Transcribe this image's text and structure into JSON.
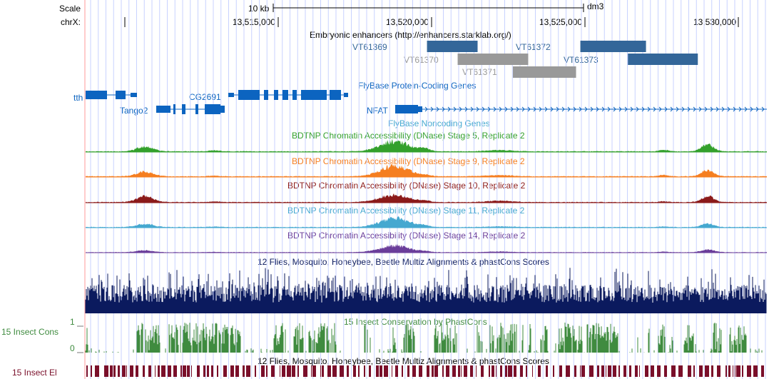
{
  "assembly": "dm3",
  "ruler": {
    "scale_label": "Scale",
    "chrom_label": "chrX:",
    "scale_bar_text": "10 kb",
    "ticks": [
      13515000,
      13520000,
      13525000,
      13530000
    ],
    "tick_labels": [
      "13,515,000",
      "13,520,000",
      "13,525,000",
      "13,530,000"
    ]
  },
  "colors": {
    "enhancer_dark": "#336699",
    "enhancer_grey": "#999999",
    "gene_blue": "#0c64c0",
    "dnase_stage5": "#33a02c",
    "dnase_stage9": "#f57e20",
    "dnase_stage10": "#8b1a1a",
    "dnase_stage11": "#45a8d0",
    "dnase_stage14": "#6a3d9a",
    "multiz": "#0b1a5e",
    "phastcons": "#3f8b3f",
    "elements": "#7a0f2a",
    "grid": "#c8d2ff",
    "left_guide": "#ff9999"
  },
  "enhancers": {
    "title": "Embryonic enhancers (http://enhancers.starklab.org/)",
    "items": [
      {
        "name": "VT61369",
        "color": "dark"
      },
      {
        "name": "VT61370",
        "color": "grey"
      },
      {
        "name": "VT61371",
        "color": "grey"
      },
      {
        "name": "VT61372",
        "color": "dark"
      },
      {
        "name": "VT61373",
        "color": "dark"
      }
    ]
  },
  "genes": {
    "title": "FlyBase Protein-Coding Genes",
    "names": [
      "tth",
      "CG2691",
      "Tango2",
      "NFAT"
    ],
    "noncoding_title": "FlyBase Noncoding Genes"
  },
  "dnase_tracks": [
    {
      "title": "BDTNP Chromatin Accessibility (DNase) Stage 5, Replicate 2",
      "color_key": "dnase_stage5"
    },
    {
      "title": "BDTNP Chromatin Accessibility (DNase) Stage 9, Replicate 2",
      "color_key": "dnase_stage9"
    },
    {
      "title": "BDTNP Chromatin Accessibility (DNase) Stage 10, Replicate 2",
      "color_key": "dnase_stage10"
    },
    {
      "title": "BDTNP Chromatin Accessibility (DNase) Stage 11, Replicate 2",
      "color_key": "dnase_stage11"
    },
    {
      "title": "BDTNP Chromatin Accessibility (DNase) Stage 14, Replicate 2",
      "color_key": "dnase_stage14"
    }
  ],
  "conservation": {
    "multiz_title": "12 Flies, Mosquito, Honeybee, Beetle Multiz Alignments & phastCons Scores",
    "phastcons_title": "15 Insect Conservation by PhastCons",
    "phastcons_side_label": "15 Insect Cons",
    "axis_max": "1",
    "axis_min": "0",
    "elements_title": "12 Flies, Mosquito, Honeybee, Beetle Multiz Alignments & phastCons Scores",
    "elements_side_label": "15 Insect El"
  }
}
